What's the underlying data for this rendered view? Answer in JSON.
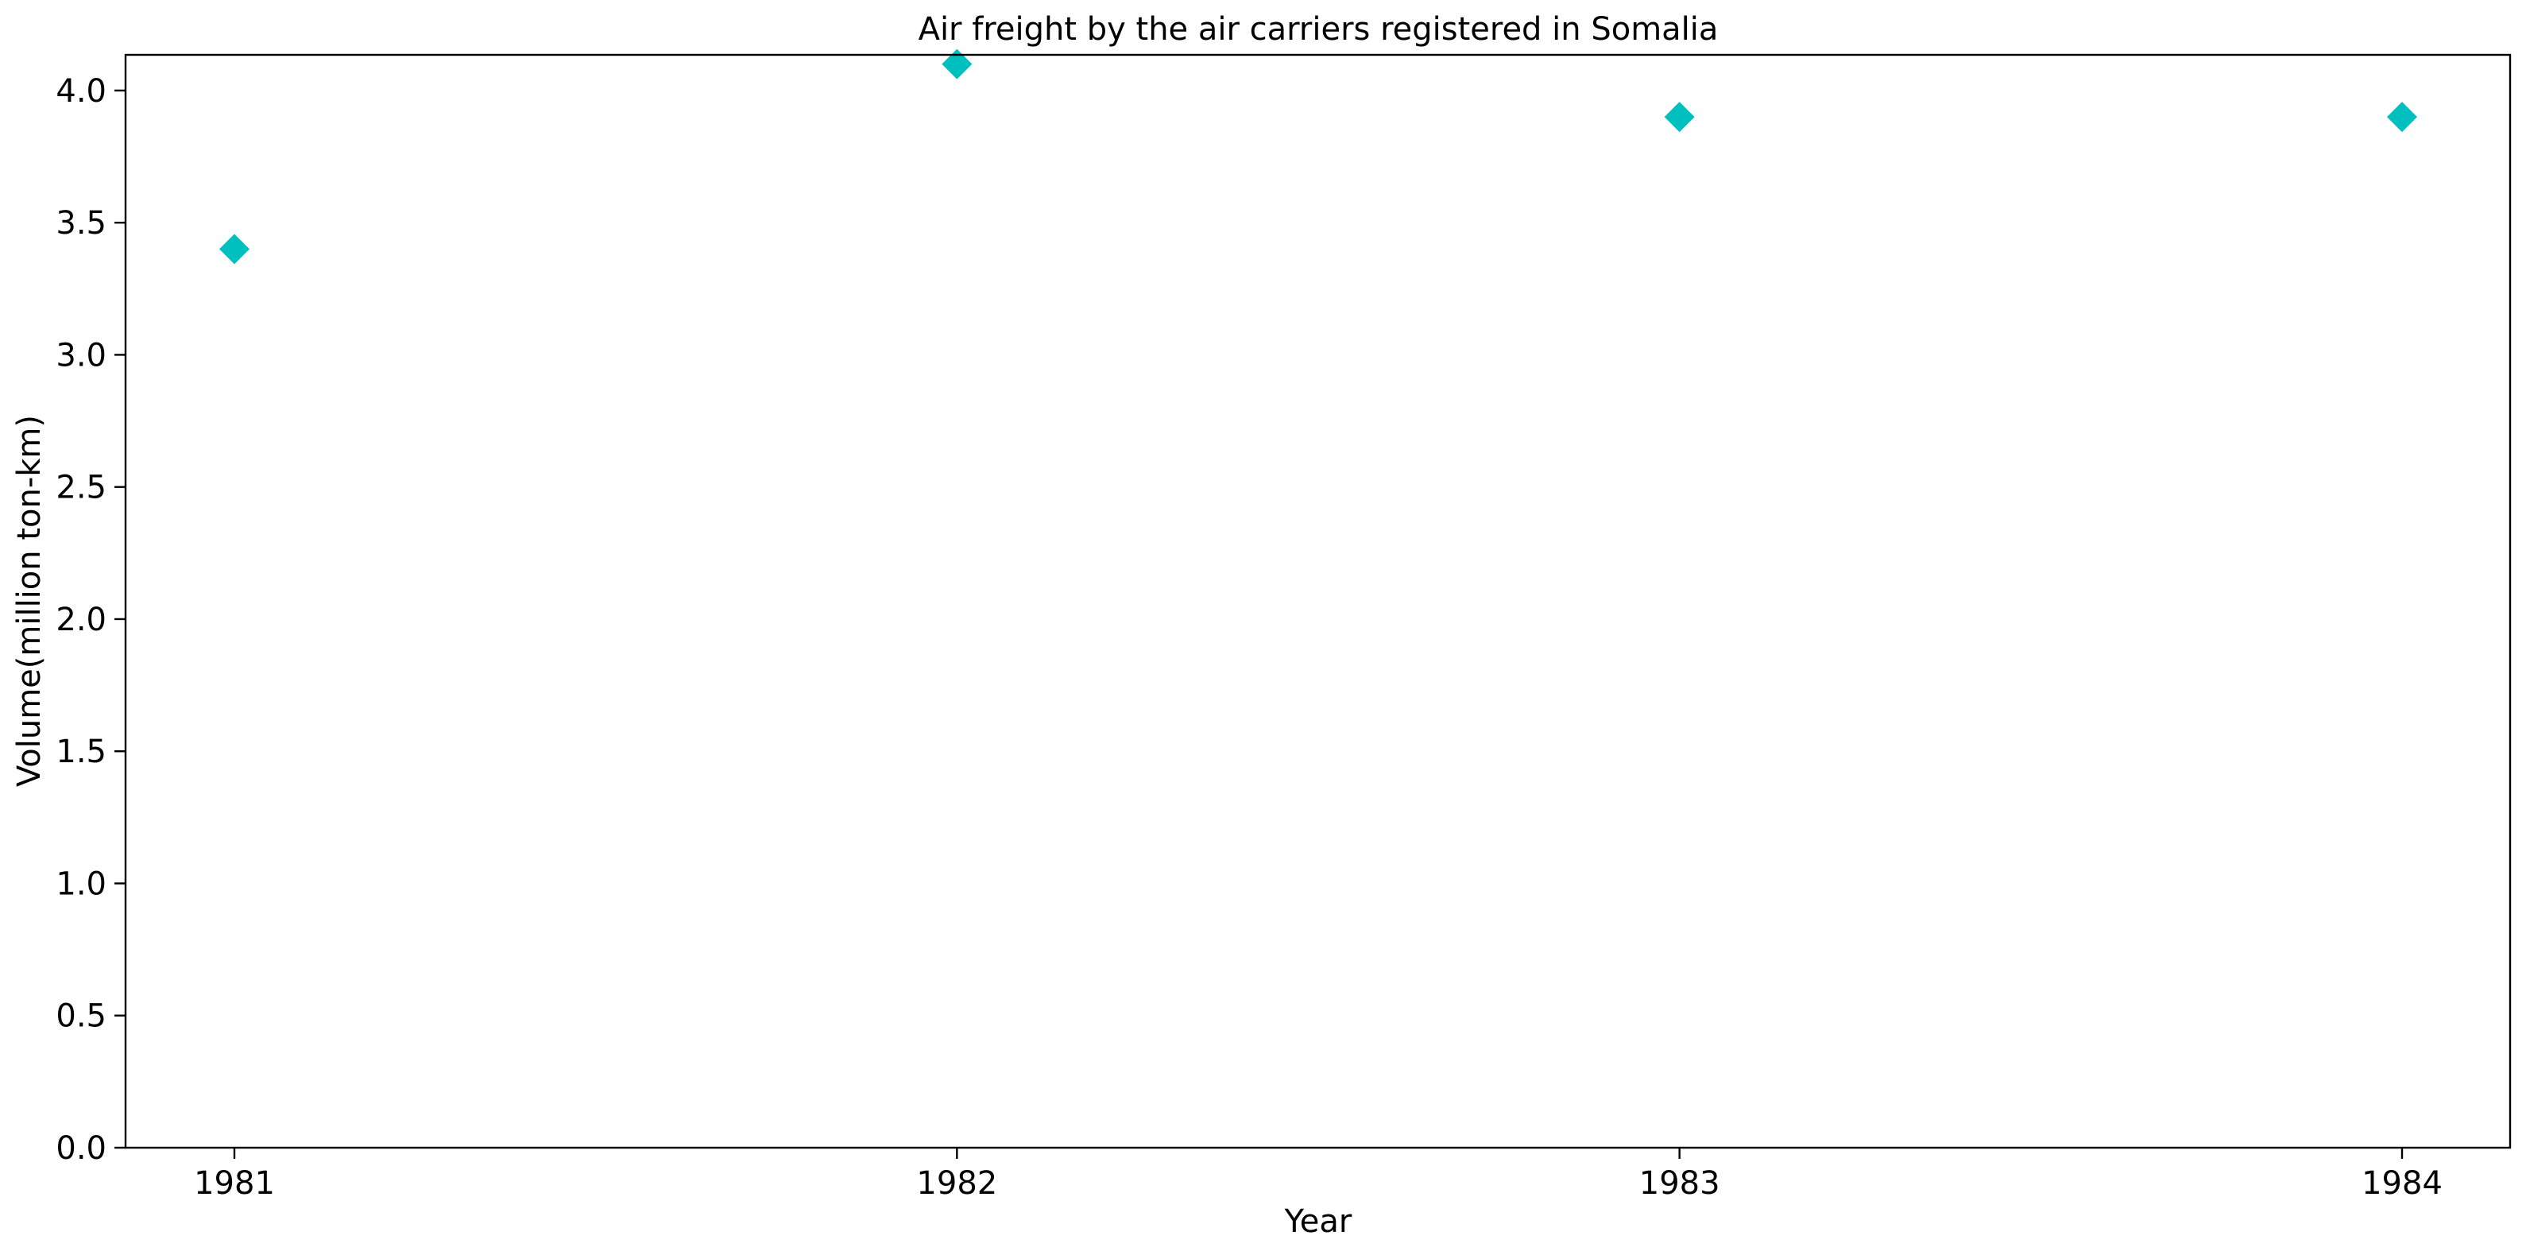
{
  "chart_data": {
    "type": "scatter",
    "title": "Air freight by the air carriers registered in Somalia",
    "xlabel": "Year",
    "ylabel": "Volume(million ton-km)",
    "x": [
      "1981",
      "1982",
      "1983",
      "1984"
    ],
    "series": [
      {
        "values": [
          3.4,
          4.1,
          3.9,
          3.9
        ],
        "color": "#00bfbf",
        "marker": "diamond"
      }
    ],
    "ylim": [
      0,
      4.135
    ],
    "yticks": [
      "0.0",
      "0.5",
      "1.0",
      "1.5",
      "2.0",
      "2.5",
      "3.0",
      "3.5",
      "4.0"
    ],
    "grid": false,
    "legend": "none"
  }
}
